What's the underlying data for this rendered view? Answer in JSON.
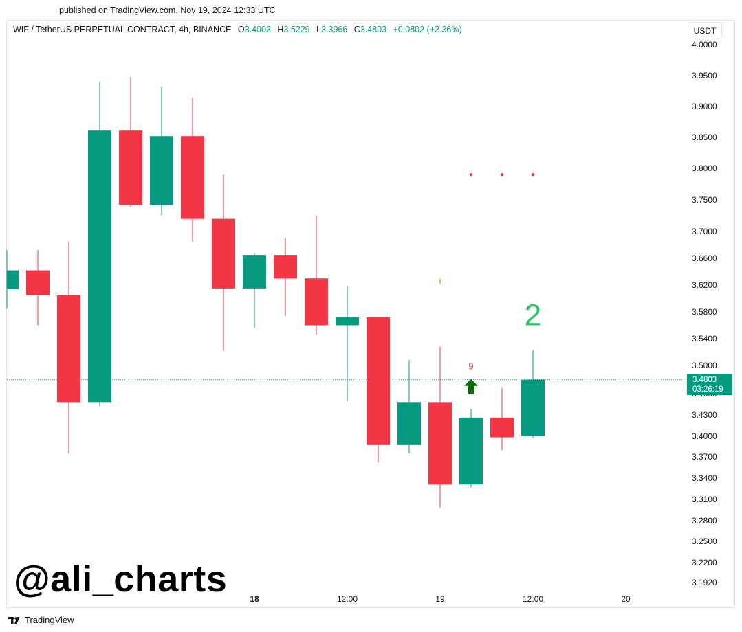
{
  "published": "published on TradingView.com, Nov 19, 2024 12:33 UTC",
  "symbol": {
    "name": "WIF / TetherUS PERPETUAL CONTRACT, 4h, BINANCE",
    "o_label": "O",
    "o_value": "3.4003",
    "h_label": "H",
    "h_value": "3.5229",
    "l_label": "L",
    "l_value": "3.3966",
    "c_label": "C",
    "c_value": "3.4803",
    "change": "+0.0802 (+2.36%)"
  },
  "unit_button": "USDT",
  "current_price": {
    "value": "3.4803",
    "countdown": "03:26:19"
  },
  "watermark": "@ali_charts",
  "brand": "TradingView",
  "colors": {
    "up": "#089981",
    "down": "#F23645",
    "signal_green": "#22C55E",
    "arrow": "#0B6B0B",
    "dot": "#F23645",
    "info": "#F7931A"
  },
  "chart_data": {
    "type": "candlestick",
    "interval": "4h",
    "y_ticks": [
      "4.0000",
      "3.9500",
      "3.9000",
      "3.8500",
      "3.8000",
      "3.7500",
      "3.7000",
      "3.6600",
      "3.6200",
      "3.5800",
      "3.5400",
      "3.5000",
      "3.4600",
      "3.4300",
      "3.4000",
      "3.3700",
      "3.3400",
      "3.3100",
      "3.2800",
      "3.2500",
      "3.2200",
      "3.1920"
    ],
    "x_ticks": [
      {
        "label": "18",
        "index": 8,
        "bold": true
      },
      {
        "label": "12:00",
        "index": 11
      },
      {
        "label": "19",
        "index": 14
      },
      {
        "label": "12:00",
        "index": 17
      },
      {
        "label": "20",
        "index": 20
      }
    ],
    "candles": [
      {
        "o": 3.614,
        "h": 3.672,
        "l": 3.585,
        "c": 3.642
      },
      {
        "o": 3.642,
        "h": 3.672,
        "l": 3.56,
        "c": 3.605
      },
      {
        "o": 3.605,
        "h": 3.685,
        "l": 3.375,
        "c": 3.448
      },
      {
        "o": 3.448,
        "h": 3.94,
        "l": 3.442,
        "c": 3.862
      },
      {
        "o": 3.862,
        "h": 3.948,
        "l": 3.738,
        "c": 3.742
      },
      {
        "o": 3.742,
        "h": 3.932,
        "l": 3.726,
        "c": 3.852
      },
      {
        "o": 3.852,
        "h": 3.914,
        "l": 3.685,
        "c": 3.72
      },
      {
        "o": 3.72,
        "h": 3.79,
        "l": 3.522,
        "c": 3.615
      },
      {
        "o": 3.615,
        "h": 3.668,
        "l": 3.556,
        "c": 3.665
      },
      {
        "o": 3.665,
        "h": 3.69,
        "l": 3.574,
        "c": 3.63
      },
      {
        "o": 3.63,
        "h": 3.725,
        "l": 3.545,
        "c": 3.56
      },
      {
        "o": 3.56,
        "h": 3.618,
        "l": 3.449,
        "c": 3.572
      },
      {
        "o": 3.572,
        "h": 3.572,
        "l": 3.362,
        "c": 3.387
      },
      {
        "o": 3.387,
        "h": 3.508,
        "l": 3.375,
        "c": 3.448
      },
      {
        "o": 3.448,
        "h": 3.528,
        "l": 3.298,
        "c": 3.331
      },
      {
        "o": 3.331,
        "h": 3.438,
        "l": 3.327,
        "c": 3.426
      },
      {
        "o": 3.426,
        "h": 3.468,
        "l": 3.38,
        "c": 3.398
      },
      {
        "o": 3.4,
        "h": 3.523,
        "l": 3.397,
        "c": 3.48
      }
    ],
    "current_price_line": 3.4803,
    "annotations": [
      {
        "type": "label",
        "text": "9",
        "index": 15,
        "price": 3.498
      },
      {
        "type": "label",
        "text": "2",
        "index": 17,
        "price": 3.572
      },
      {
        "type": "label",
        "text": "i",
        "index": 14,
        "price": 3.625
      },
      {
        "type": "arrow-up",
        "index": 15,
        "price": 3.471
      },
      {
        "type": "dot",
        "index": 15,
        "price": 3.79
      },
      {
        "type": "dot",
        "index": 16,
        "price": 3.79
      },
      {
        "type": "dot",
        "index": 17,
        "price": 3.79
      }
    ]
  }
}
